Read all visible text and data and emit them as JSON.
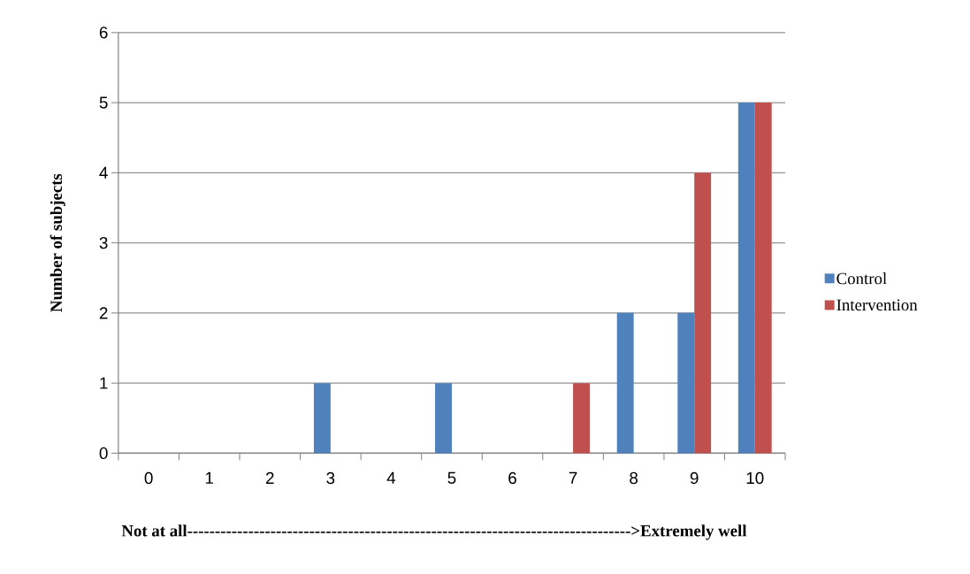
{
  "chart_data": {
    "type": "bar",
    "categories": [
      "0",
      "1",
      "2",
      "3",
      "4",
      "5",
      "6",
      "7",
      "8",
      "9",
      "10"
    ],
    "series": [
      {
        "name": "Control",
        "color": "#4f81bd",
        "values": [
          0,
          0,
          0,
          1,
          0,
          1,
          0,
          0,
          2,
          2,
          5
        ]
      },
      {
        "name": "Intervention",
        "color": "#c0504d",
        "values": [
          0,
          0,
          0,
          0,
          0,
          0,
          0,
          1,
          0,
          4,
          5
        ]
      }
    ],
    "xlabel": "Not at all-------------------------------------------------------------------------------->Extremely well",
    "ylabel": "Number of subjects",
    "ylim": [
      0,
      6
    ],
    "yticks": [
      0,
      1,
      2,
      3,
      4,
      5,
      6
    ],
    "grid": "y",
    "legend": "right"
  }
}
